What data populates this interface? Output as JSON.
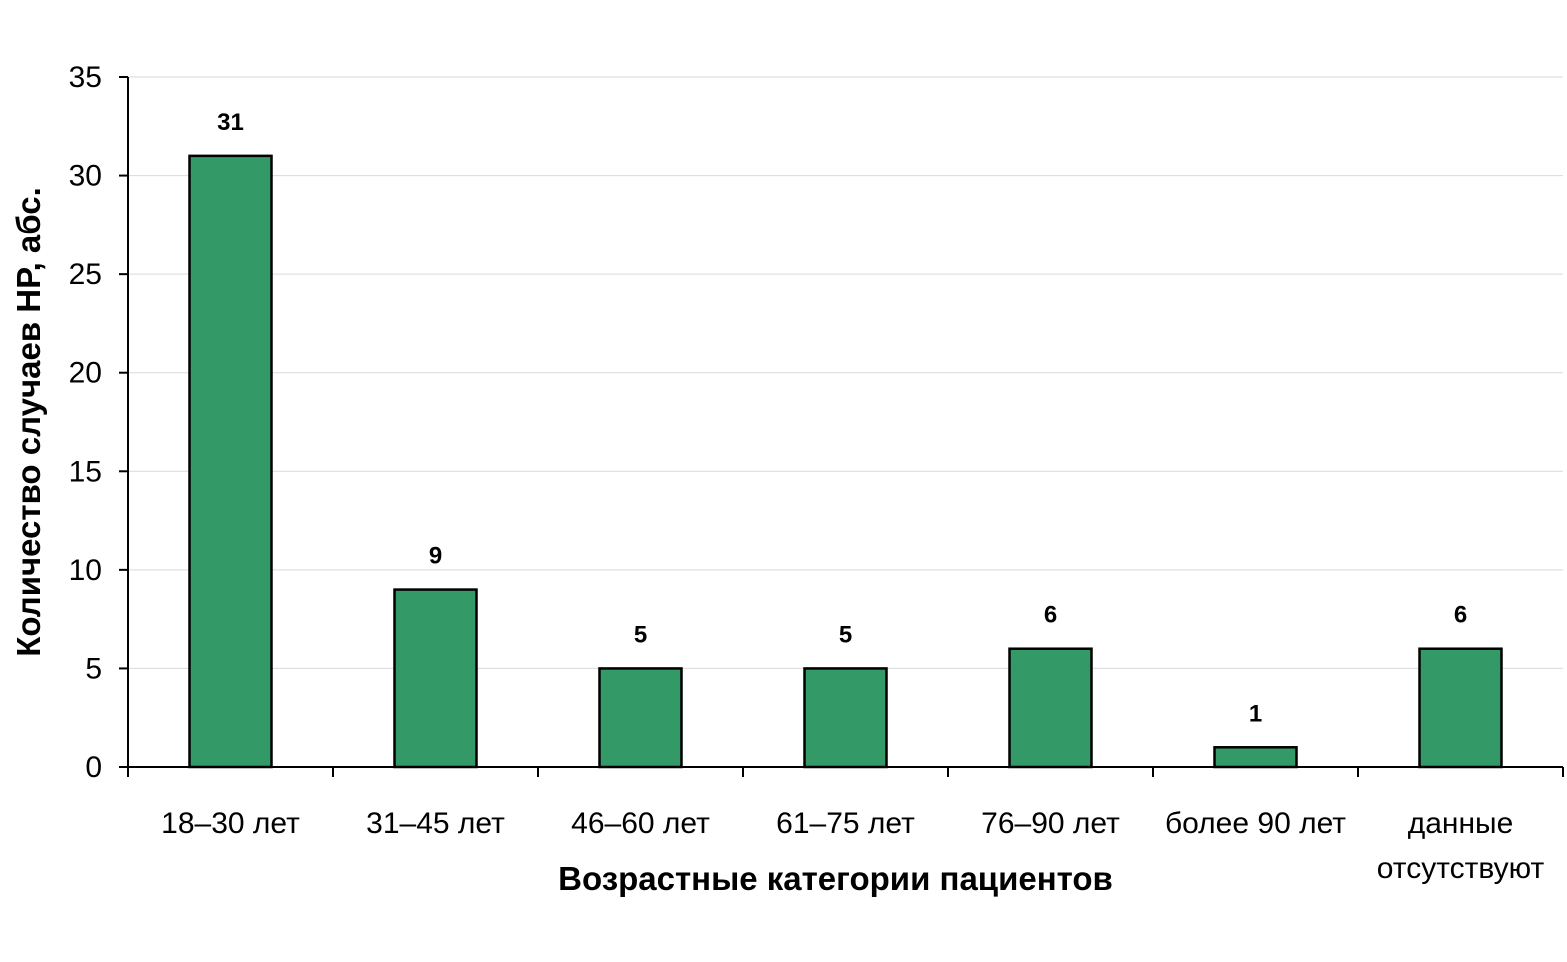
{
  "chart_data": {
    "type": "bar",
    "categories": [
      [
        "18–30 лет"
      ],
      [
        "31–45 лет"
      ],
      [
        "46–60 лет"
      ],
      [
        "61–75 лет"
      ],
      [
        "76–90 лет"
      ],
      [
        "более 90 лет"
      ],
      [
        "данные",
        "отсутствуют"
      ]
    ],
    "values": [
      31,
      9,
      5,
      5,
      6,
      1,
      6
    ],
    "data_labels": [
      "31",
      "9",
      "5",
      "5",
      "6",
      "1",
      "6"
    ],
    "title": "",
    "xlabel": "Возрастные категории пациентов",
    "ylabel": "Количество случаев НР, абс.",
    "ylim": [
      0,
      35
    ],
    "yticks": [
      0,
      5,
      10,
      15,
      20,
      25,
      30,
      35
    ],
    "grid": "horizontal",
    "legend": "none",
    "colors": {
      "bar": "#339966",
      "bar_edge": "#000000",
      "grid": "#d9d9d9",
      "axis": "#000000"
    }
  }
}
